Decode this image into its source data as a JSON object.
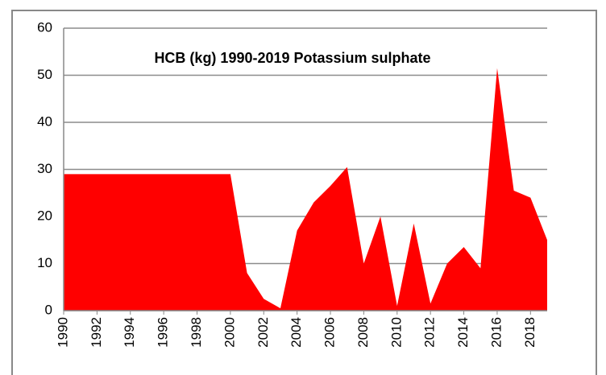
{
  "chart_data": {
    "type": "area",
    "title": "HCB (kg) 1990-2019 Potassium sulphate",
    "x": [
      1990,
      1991,
      1992,
      1993,
      1994,
      1995,
      1996,
      1997,
      1998,
      1999,
      2000,
      2001,
      2002,
      2003,
      2004,
      2005,
      2006,
      2007,
      2008,
      2009,
      2010,
      2011,
      2012,
      2013,
      2014,
      2015,
      2016,
      2017,
      2018,
      2019
    ],
    "values": [
      29,
      29,
      29,
      29,
      29,
      29,
      29,
      29,
      29,
      29,
      29,
      8,
      2.5,
      0.5,
      17,
      23,
      26.5,
      30.5,
      10,
      20,
      1,
      18.5,
      1.5,
      10,
      13.5,
      9,
      51.5,
      25.5,
      24,
      15
    ],
    "color": "#ff0000",
    "xlim": [
      1990,
      2019
    ],
    "xticks": [
      1990,
      1992,
      1994,
      1996,
      1998,
      2000,
      2002,
      2004,
      2006,
      2008,
      2010,
      2012,
      2014,
      2016,
      2018
    ],
    "ylim": [
      0,
      60
    ],
    "yticks": [
      0,
      10,
      20,
      30,
      40,
      50,
      60
    ],
    "grid": true
  }
}
